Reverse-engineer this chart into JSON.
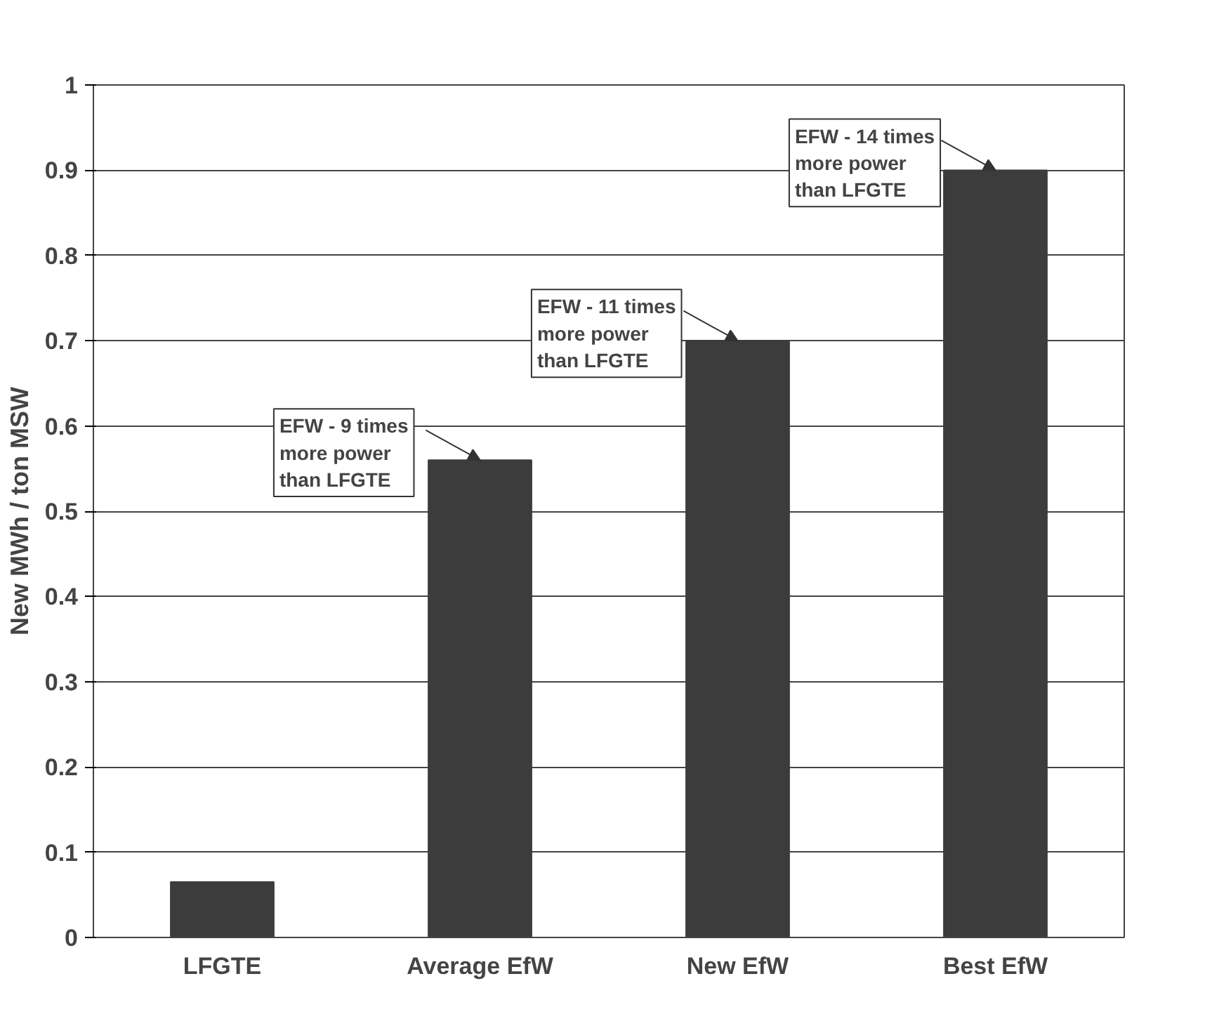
{
  "chart_data": {
    "type": "bar",
    "ylabel": "New MWh / ton MSW",
    "categories": [
      "LFGTE",
      "Average EfW",
      "New EfW",
      "Best EfW"
    ],
    "values": [
      0.065,
      0.56,
      0.7,
      0.9
    ],
    "color": "#3c3c3c",
    "ylim": [
      0,
      1
    ],
    "yticks": [
      0,
      0.1,
      0.2,
      0.3,
      0.4,
      0.5,
      0.6,
      0.7,
      0.8,
      0.9,
      1
    ],
    "grid": "y",
    "annotations": [
      {
        "text": "EFW - 9 times\nmore power\nthan LFGTE",
        "x": "Average EfW",
        "y": 0.56
      },
      {
        "text": "EFW - 11 times\nmore power\nthan LFGTE",
        "x": "New EfW",
        "y": 0.7
      },
      {
        "text": "EFW - 14 times\nmore power\nthan LFGTE",
        "x": "Best EfW",
        "y": 0.9
      }
    ]
  }
}
